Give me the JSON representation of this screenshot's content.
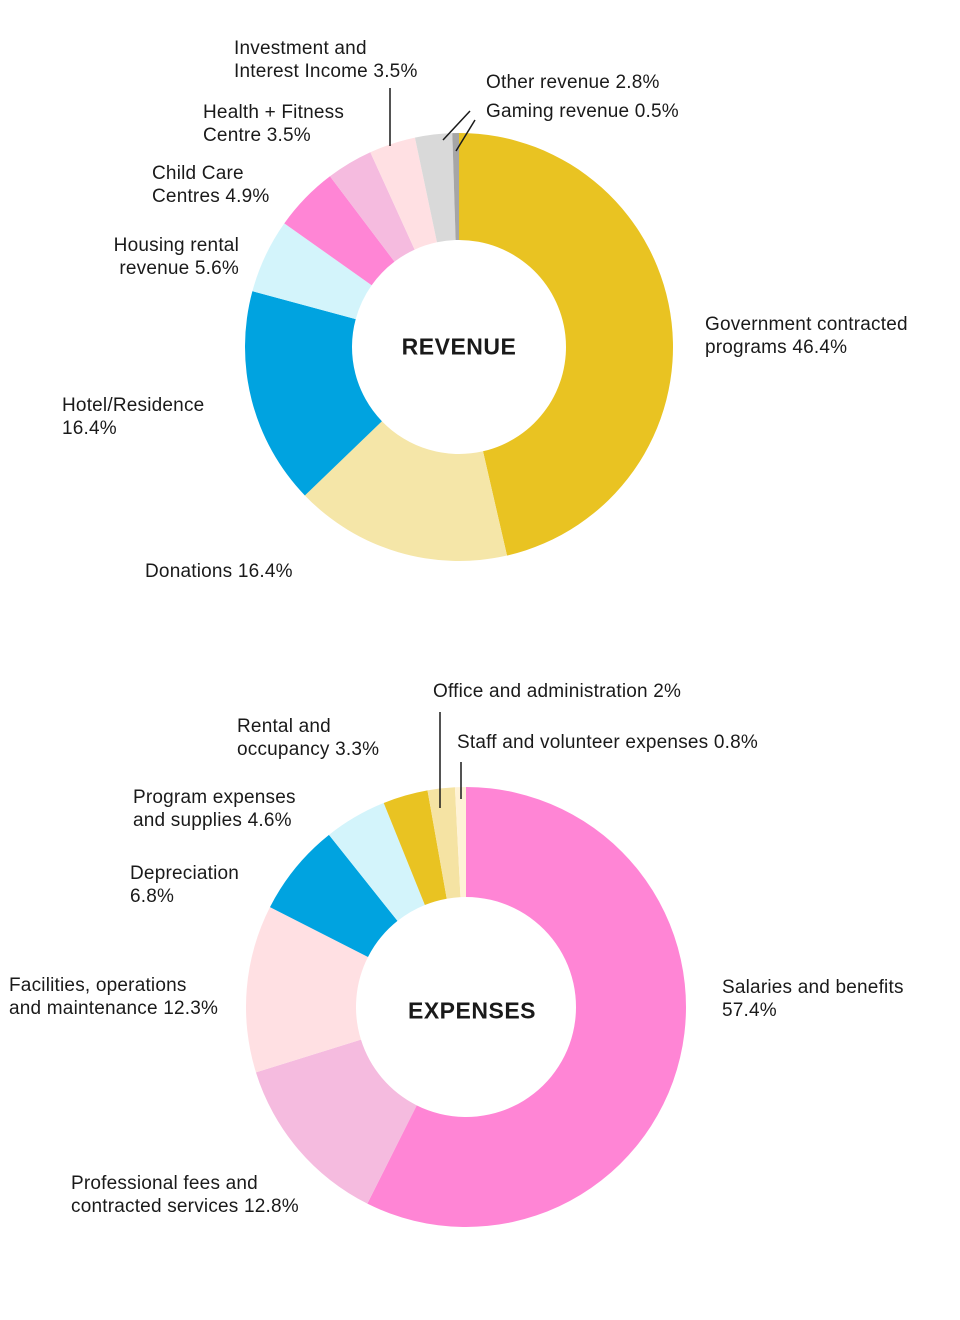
{
  "chart_data": [
    {
      "type": "pie",
      "title": "REVENUE",
      "donut": true,
      "start_angle": "top, clockwise",
      "slices": [
        {
          "name": "Government contracted programs",
          "value": 46.4,
          "label": "Government contracted\nprograms 46.4%",
          "color": "#E9C322"
        },
        {
          "name": "Donations",
          "value": 16.4,
          "label": "Donations 16.4%",
          "color": "#F5E6A8"
        },
        {
          "name": "Hotel/Residence",
          "value": 16.4,
          "label": "Hotel/Residence\n16.4%",
          "color": "#00A3E0"
        },
        {
          "name": "Housing rental revenue",
          "value": 5.6,
          "label": "Housing rental\nrevenue 5.6%",
          "color": "#D3F4FB"
        },
        {
          "name": "Child Care Centres",
          "value": 4.9,
          "label": "Child Care\nCentres 4.9%",
          "color": "#FF85D5"
        },
        {
          "name": "Health + Fitness Centre",
          "value": 3.5,
          "label": "Health + Fitness\nCentre 3.5%",
          "color": "#F5BBDF"
        },
        {
          "name": "Investment and Interest Income",
          "value": 3.5,
          "label": "Investment and\nInterest Income 3.5%",
          "color": "#FFE0E3"
        },
        {
          "name": "Other revenue",
          "value": 2.8,
          "label": "Other revenue 2.8%",
          "color": "#D9D9D9"
        },
        {
          "name": "Gaming revenue",
          "value": 0.5,
          "label": "Gaming revenue 0.5%",
          "color": "#A6A6A6"
        }
      ]
    },
    {
      "type": "pie",
      "title": "EXPENSES",
      "donut": true,
      "start_angle": "top, clockwise",
      "slices": [
        {
          "name": "Salaries and benefits",
          "value": 57.4,
          "label": "Salaries and benefits\n57.4%",
          "color": "#FF85D5"
        },
        {
          "name": "Professional fees and contracted services",
          "value": 12.8,
          "label": "Professional fees and\ncontracted services 12.8%",
          "color": "#F5BBDF"
        },
        {
          "name": "Facilities, operations and maintenance",
          "value": 12.3,
          "label": "Facilities, operations\nand maintenance 12.3%",
          "color": "#FFE0E3"
        },
        {
          "name": "Depreciation",
          "value": 6.8,
          "label": "Depreciation\n6.8%",
          "color": "#00A3E0"
        },
        {
          "name": "Program expenses and supplies",
          "value": 4.6,
          "label": "Program expenses\nand supplies 4.6%",
          "color": "#D3F4FB"
        },
        {
          "name": "Rental and occupancy",
          "value": 3.3,
          "label": "Rental and\noccupancy 3.3%",
          "color": "#E9C322"
        },
        {
          "name": "Office and administration",
          "value": 2,
          "label": "Office and administration 2%",
          "color": "#F5E3A3"
        },
        {
          "name": "Staff and volunteer expenses",
          "value": 0.8,
          "label": "Staff and volunteer expenses 0.8%",
          "color": "#FFF3D6"
        }
      ]
    }
  ]
}
